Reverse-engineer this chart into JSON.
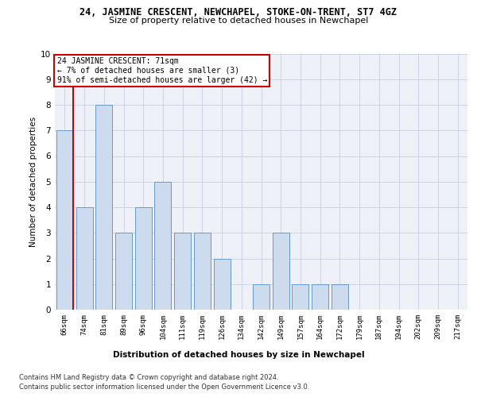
{
  "title_line1": "24, JASMINE CRESCENT, NEWCHAPEL, STOKE-ON-TRENT, ST7 4GZ",
  "title_line2": "Size of property relative to detached houses in Newchapel",
  "xlabel": "Distribution of detached houses by size in Newchapel",
  "ylabel": "Number of detached properties",
  "categories": [
    "66sqm",
    "74sqm",
    "81sqm",
    "89sqm",
    "96sqm",
    "104sqm",
    "111sqm",
    "119sqm",
    "126sqm",
    "134sqm",
    "142sqm",
    "149sqm",
    "157sqm",
    "164sqm",
    "172sqm",
    "179sqm",
    "187sqm",
    "194sqm",
    "202sqm",
    "209sqm",
    "217sqm"
  ],
  "values": [
    7,
    4,
    8,
    3,
    4,
    5,
    3,
    3,
    2,
    0,
    1,
    3,
    1,
    1,
    1,
    0,
    0,
    0,
    0,
    0,
    0
  ],
  "bar_color": "#ccdcee",
  "bar_edge_color": "#6699cc",
  "vline_color": "#cc0000",
  "vline_pos": 0.42,
  "annotation_text": "24 JASMINE CRESCENT: 71sqm\n← 7% of detached houses are smaller (3)\n91% of semi-detached houses are larger (42) →",
  "annotation_box_color": "#ffffff",
  "annotation_box_edge": "#cc0000",
  "ylim": [
    0,
    10
  ],
  "yticks": [
    0,
    1,
    2,
    3,
    4,
    5,
    6,
    7,
    8,
    9,
    10
  ],
  "footer_line1": "Contains HM Land Registry data © Crown copyright and database right 2024.",
  "footer_line2": "Contains public sector information licensed under the Open Government Licence v3.0.",
  "bg_color": "#ffffff",
  "plot_bg_color": "#eef2f8",
  "grid_color": "#c8cfe0"
}
